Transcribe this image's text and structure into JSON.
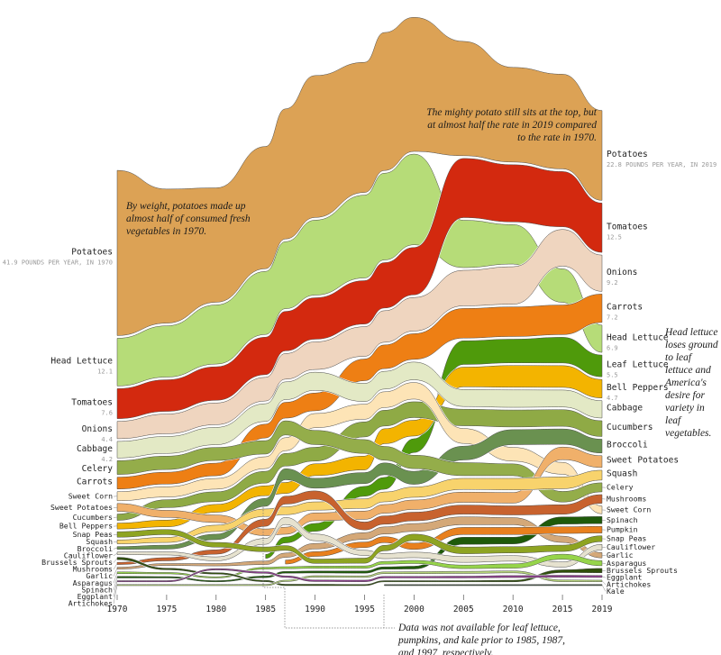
{
  "chart_data": {
    "type": "area",
    "x": [
      1970,
      1975,
      1980,
      1985,
      1987,
      1990,
      1995,
      1997,
      2000,
      2005,
      2010,
      2015,
      2019
    ],
    "xlim": [
      1970,
      2019
    ],
    "xticks": [
      "1970",
      "1975",
      "1980",
      "1985",
      "1990",
      "1995",
      "2000",
      "2005",
      "2010",
      "2015",
      "2019"
    ],
    "grid": false,
    "series": [
      {
        "name": "Potatoes",
        "color": "#dca255",
        "values": [
          41.9,
          34,
          29,
          31,
          33,
          36,
          33,
          35,
          34,
          29,
          24,
          24,
          22.8
        ]
      },
      {
        "name": "Head Lettuce",
        "color": "#b6dc78",
        "values": [
          12.1,
          13,
          15,
          16,
          17,
          19,
          21,
          22,
          23,
          12,
          10,
          8.5,
          6.9
        ]
      },
      {
        "name": "Tomatoes",
        "color": "#d3290f",
        "values": [
          7.6,
          8,
          8.5,
          9.5,
          10,
          10.5,
          11,
          11.5,
          12,
          15,
          14.5,
          14,
          12.5
        ]
      },
      {
        "name": "Onions",
        "color": "#efd5bf",
        "values": [
          4.4,
          5,
          5.5,
          6,
          6.5,
          7,
          7.5,
          8,
          8.5,
          9,
          9.5,
          9.3,
          9.2
        ]
      },
      {
        "name": "Carrots",
        "color": "#ee7f14",
        "values": [
          3.0,
          3.0,
          3.2,
          3.5,
          4,
          4.5,
          5.5,
          6,
          6.5,
          7.5,
          7.5,
          7.5,
          7.2
        ]
      },
      {
        "name": "Leaf Lettuce",
        "color": "#4f9a0b",
        "values": [
          null,
          null,
          null,
          1.0,
          1.5,
          2.0,
          2.5,
          3.0,
          3.5,
          6,
          6,
          6.5,
          5.5
        ]
      },
      {
        "name": "Bell Peppers",
        "color": "#f3b400",
        "values": [
          1.5,
          1.7,
          2.0,
          2.5,
          2.8,
          3.0,
          3.5,
          3.8,
          4.0,
          5,
          5.5,
          5.5,
          4.7
        ]
      },
      {
        "name": "Cabbage",
        "color": "#e3e9c5",
        "values": [
          4.2,
          4.3,
          4.4,
          4.5,
          4.5,
          4.6,
          4.6,
          4.5,
          4.5,
          4.3,
          4.4,
          4.3,
          4.4
        ]
      },
      {
        "name": "Cucumbers",
        "color": "#8faa45",
        "values": [
          1.6,
          2.0,
          2.5,
          3.0,
          3.2,
          3.5,
          3.8,
          4.0,
          4.0,
          4.2,
          4.3,
          4.2,
          4.0
        ]
      },
      {
        "name": "Broccoli",
        "color": "#6a9150",
        "values": [
          0.7,
          1.0,
          1.4,
          2.0,
          2.8,
          2.5,
          2.8,
          3.0,
          3.3,
          3.5,
          3.8,
          3.9,
          3.5
        ]
      },
      {
        "name": "Sweet Potatoes",
        "color": "#f0b06a",
        "values": [
          2.0,
          1.8,
          1.9,
          1.7,
          1.8,
          2.0,
          2.1,
          2.2,
          2.4,
          2.6,
          2.7,
          3.2,
          3.0
        ]
      },
      {
        "name": "Squash",
        "color": "#f8d36c",
        "values": [
          1.0,
          1.3,
          1.6,
          1.9,
          2.0,
          2.1,
          2.4,
          2.5,
          2.6,
          2.8,
          2.9,
          3.0,
          2.5
        ]
      },
      {
        "name": "Celery",
        "color": "#94ad4a",
        "values": [
          3.5,
          3.4,
          3.3,
          3.4,
          3.6,
          3.6,
          3.5,
          3.5,
          3.4,
          3.3,
          3.0,
          2.7,
          2.3
        ]
      },
      {
        "name": "Mushrooms",
        "color": "#c8622e",
        "values": [
          0.55,
          0.8,
          1.1,
          1.8,
          2.0,
          2.1,
          2.0,
          2.1,
          2.2,
          2.3,
          2.3,
          2.4,
          2.2
        ]
      },
      {
        "name": "Sweet Corn",
        "color": "#fde4b6",
        "values": [
          2.3,
          2.6,
          2.7,
          3.0,
          3.3,
          3.6,
          3.8,
          4.0,
          4.2,
          3.8,
          3.5,
          3.0,
          2.0
        ]
      },
      {
        "name": "Spinach",
        "color": "#1f5a0a",
        "values": [
          0.4,
          0.35,
          0.3,
          0.4,
          0.45,
          0.5,
          0.55,
          0.6,
          0.7,
          1.8,
          1.7,
          1.8,
          1.8
        ]
      },
      {
        "name": "Pumpkin",
        "color": "#e8801e",
        "values": [
          null,
          null,
          null,
          null,
          1.0,
          1.2,
          1.4,
          1.5,
          1.6,
          1.8,
          1.8,
          1.7,
          1.7
        ]
      },
      {
        "name": "Snap Peas",
        "color": "#8ea421",
        "values": [
          1.4,
          1.3,
          1.2,
          1.2,
          1.2,
          1.1,
          1.3,
          1.4,
          1.6,
          1.7,
          1.6,
          1.6,
          1.5
        ]
      },
      {
        "name": "Cauliflower",
        "color": "#e6e2cf",
        "values": [
          0.65,
          0.8,
          1.0,
          1.5,
          1.8,
          1.7,
          1.3,
          1.3,
          1.4,
          1.5,
          1.4,
          1.3,
          1.4
        ]
      },
      {
        "name": "Garlic",
        "color": "#d4a878",
        "values": [
          0.5,
          0.5,
          0.6,
          0.9,
          1.1,
          1.4,
          1.7,
          1.8,
          2.0,
          2.0,
          1.8,
          1.6,
          1.35
        ]
      },
      {
        "name": "Asparagus",
        "color": "#96d44a",
        "values": [
          0.45,
          0.35,
          0.3,
          0.45,
          0.5,
          0.55,
          0.6,
          0.7,
          0.8,
          0.9,
          1.1,
          1.3,
          1.3
        ]
      },
      {
        "name": "Brussels Sprouts",
        "color": "#2f4f0a",
        "values": [
          0.6,
          0.4,
          0.35,
          0.35,
          0.35,
          0.35,
          0.3,
          0.3,
          0.3,
          0.3,
          0.4,
          0.7,
          1.1
        ]
      },
      {
        "name": "Eggplant",
        "color": "#8e3f8e",
        "values": [
          0.3,
          0.3,
          0.35,
          0.4,
          0.4,
          0.4,
          0.4,
          0.4,
          0.4,
          0.45,
          0.5,
          0.5,
          0.5
        ]
      },
      {
        "name": "Artichokes",
        "color": "#b5d37a",
        "values": [
          0.2,
          0.2,
          0.25,
          0.3,
          0.35,
          0.4,
          0.4,
          0.45,
          0.5,
          0.55,
          0.5,
          0.45,
          0.4
        ]
      },
      {
        "name": "Kale",
        "color": "#445544",
        "values": [
          null,
          null,
          null,
          null,
          null,
          null,
          null,
          0.1,
          0.1,
          0.15,
          0.2,
          0.3,
          0.3
        ]
      }
    ],
    "left_labels": [
      {
        "text": "Potatoes",
        "sub": "41.9 POUNDS PER YEAR, IN 1970"
      },
      {
        "text": "Head Lettuce",
        "sub": "12.1"
      },
      {
        "text": "Tomatoes",
        "sub": "7.6"
      },
      {
        "text": "Onions",
        "sub": "4.4"
      },
      {
        "text": "Cabbage",
        "sub": "4.2"
      },
      {
        "text": "Celery"
      },
      {
        "text": "Carrots"
      },
      {
        "text": "Sweet Corn"
      },
      {
        "text": "Sweet Potatoes"
      },
      {
        "text": "Cucumbers"
      },
      {
        "text": "Bell Peppers"
      },
      {
        "text": "Snap Peas"
      },
      {
        "text": "Squash"
      },
      {
        "text": "Broccoli"
      },
      {
        "text": "Cauliflower"
      },
      {
        "text": "Brussels Sprouts"
      },
      {
        "text": "Mushrooms"
      },
      {
        "text": "Garlic"
      },
      {
        "text": "Asparagus"
      },
      {
        "text": "Spinach"
      },
      {
        "text": "Eggplant"
      },
      {
        "text": "Artichokes"
      }
    ],
    "right_labels": [
      {
        "text": "Potatoes",
        "sub": "22.8 POUNDS PER YEAR, IN 2019"
      },
      {
        "text": "Tomatoes",
        "sub": "12.5"
      },
      {
        "text": "Onions",
        "sub": "9.2"
      },
      {
        "text": "Carrots",
        "sub": "7.2"
      },
      {
        "text": "Head Lettuce",
        "sub": "6.9"
      },
      {
        "text": "Leaf Lettuce",
        "sub": "5.5"
      },
      {
        "text": "Bell Peppers",
        "sub": "4.7"
      },
      {
        "text": "Cabbage"
      },
      {
        "text": "Cucumbers"
      },
      {
        "text": "Broccoli"
      },
      {
        "text": "Sweet Potatoes"
      },
      {
        "text": "Squash"
      },
      {
        "text": "Celery"
      },
      {
        "text": "Mushrooms"
      },
      {
        "text": "Sweet Corn"
      },
      {
        "text": "Spinach"
      },
      {
        "text": "Pumpkin"
      },
      {
        "text": "Snap Peas"
      },
      {
        "text": "Cauliflower"
      },
      {
        "text": "Garlic"
      },
      {
        "text": "Asparagus"
      },
      {
        "text": "Brussels Sprouts"
      },
      {
        "text": "Eggplant"
      },
      {
        "text": "Artichokes"
      },
      {
        "text": "Kale"
      }
    ]
  },
  "annotations": {
    "potato_1970": "By weight, potatoes made up almost half of consumed fresh vegetables in 1970.",
    "potato_2019": "The mighty potato still sits at the top, but at almost half the rate in 2019 compared to the rate in 1970.",
    "lettuce": "Head lettuce loses ground to leaf lettuce and America's desire for variety in leaf vegetables.",
    "missing_data": "Data was not available for leaf lettuce, pumpkins, and kale prior to 1985, 1987, and 1997, respectively."
  }
}
